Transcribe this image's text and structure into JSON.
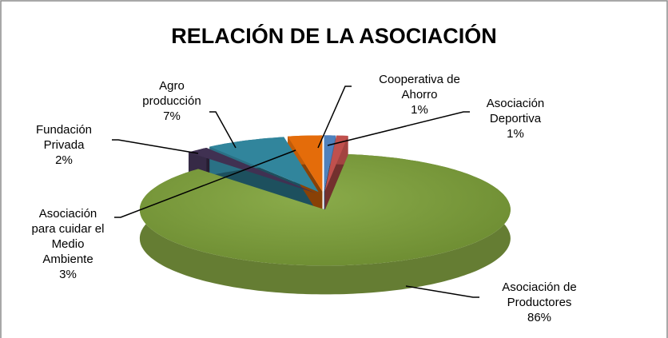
{
  "chart_data": {
    "type": "pie",
    "title": "RELACIÓN DE LA ASOCIACIÓN",
    "categories": [
      "Cooperativa de Ahorro",
      "Asociación Deportiva",
      "Asociación de Productores",
      "Fundación Privada",
      "Agro producción",
      "Asociación para cuidar el Medio Ambiente"
    ],
    "values": [
      1,
      1,
      86,
      2,
      7,
      3
    ],
    "value_labels": [
      "1%",
      "1%",
      "86%",
      "2%",
      "7%",
      "3%"
    ],
    "colors": [
      "#4f81bd",
      "#c0504d",
      "#77933c",
      "#403152",
      "#31859c",
      "#e46c0a"
    ],
    "legend": false
  }
}
